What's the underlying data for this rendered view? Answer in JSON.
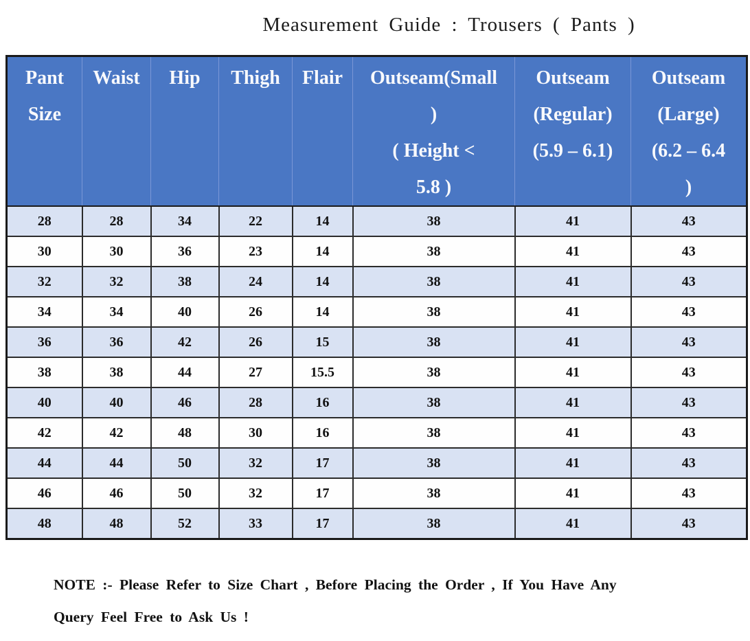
{
  "page": {
    "title": "Measurement Guide : Trousers ( Pants )"
  },
  "table": {
    "headers": [
      "Pant\nSize",
      "Waist",
      "Hip",
      "Thigh",
      "Flair",
      "Outseam(Small\n)\n( Height <\n5.8 )",
      "Outseam\n(Regular)\n(5.9 – 6.1)",
      "Outseam\n(Large)\n(6.2 – 6.4\n)"
    ],
    "rows": [
      [
        "28",
        "28",
        "34",
        "22",
        "14",
        "38",
        "41",
        "43"
      ],
      [
        "30",
        "30",
        "36",
        "23",
        "14",
        "38",
        "41",
        "43"
      ],
      [
        "32",
        "32",
        "38",
        "24",
        "14",
        "38",
        "41",
        "43"
      ],
      [
        "34",
        "34",
        "40",
        "26",
        "14",
        "38",
        "41",
        "43"
      ],
      [
        "36",
        "36",
        "42",
        "26",
        "15",
        "38",
        "41",
        "43"
      ],
      [
        "38",
        "38",
        "44",
        "27",
        "15.5",
        "38",
        "41",
        "43"
      ],
      [
        "40",
        "40",
        "46",
        "28",
        "16",
        "38",
        "41",
        "43"
      ],
      [
        "42",
        "42",
        "48",
        "30",
        "16",
        "38",
        "41",
        "43"
      ],
      [
        "44",
        "44",
        "50",
        "32",
        "17",
        "38",
        "41",
        "43"
      ],
      [
        "46",
        "46",
        "50",
        "32",
        "17",
        "38",
        "41",
        "43"
      ],
      [
        "48",
        "48",
        "52",
        "33",
        "17",
        "38",
        "41",
        "43"
      ]
    ]
  },
  "note": {
    "text": "NOTE :- Please Refer to Size Chart , Before Placing the Order , If You Have Any\nQuery Feel Free to Ask Us !"
  },
  "colors": {
    "header_bg": "#4a77c4",
    "header_text": "#f8f9fc",
    "row_alt_bg": "#d9e2f3",
    "row_bg": "#fefefe",
    "border_dark": "#1a1a1a"
  }
}
